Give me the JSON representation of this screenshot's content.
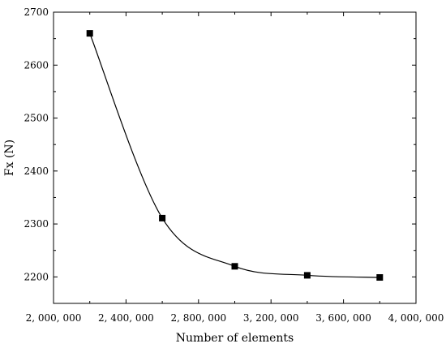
{
  "chart_data": {
    "type": "scatter",
    "xlabel": "Number of elements",
    "ylabel": "Fx (N)",
    "xlim": [
      2000000,
      4000000
    ],
    "ylim": [
      2150,
      2700
    ],
    "x_ticks": [
      2000000,
      2400000,
      2800000,
      3200000,
      3600000,
      4000000
    ],
    "x_tick_labels": [
      "2, 000, 000",
      "2, 400, 000",
      "2, 800, 000",
      "3, 200, 000",
      "3, 600, 000",
      "4, 000, 000"
    ],
    "y_ticks": [
      2200,
      2300,
      2400,
      2500,
      2600,
      2700
    ],
    "y_tick_labels": [
      "2200",
      "2300",
      "2400",
      "2500",
      "2600",
      "2700"
    ],
    "grid": false,
    "marker": "square",
    "smooth_line": true,
    "series": [
      {
        "x": [
          2200000,
          2600000,
          3000000,
          3400000,
          3800000
        ],
        "y": [
          2660,
          2311,
          2220,
          2203,
          2199
        ]
      }
    ]
  }
}
